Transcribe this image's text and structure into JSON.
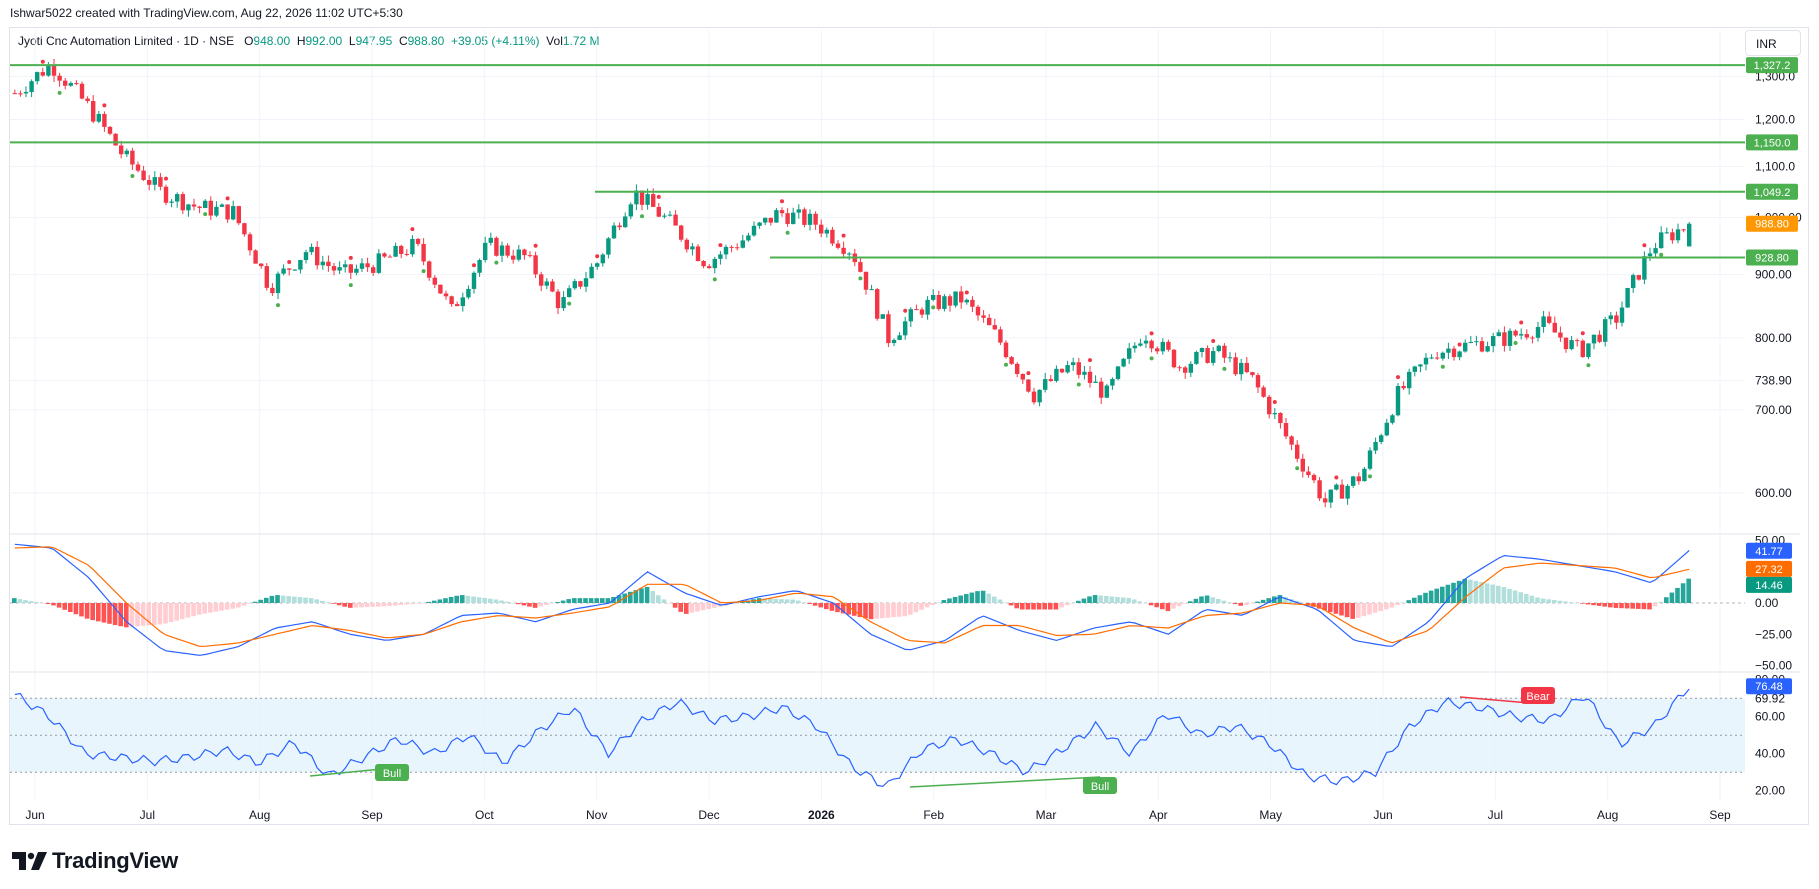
{
  "header": {
    "attribution": "Ishwar5022 created with TradingView.com, Aug 22, 2026 11:02 UTC+5:30"
  },
  "legend": {
    "symbol": "Jyoti Cnc Automation Limited · 1D · NSE",
    "o_label": "O",
    "o_value": "948.00",
    "h_label": "H",
    "h_value": "992.00",
    "l_label": "L",
    "l_value": "947.95",
    "c_label": "C",
    "c_value": "988.80",
    "change": "+39.05 (+4.11%)",
    "vol_label": "Vol",
    "vol_value": "1.72 M"
  },
  "currency": "INR",
  "brand": {
    "name": "TradingView"
  },
  "colors": {
    "up": "#089981",
    "down": "#f23645",
    "level": "#4caf50",
    "macd": "#2962ff",
    "signal": "#ff6d00",
    "rsi": "#2962ff"
  },
  "chart_data": [
    {
      "type": "candlestick",
      "title": "",
      "x_tick_labels": [
        "Jun",
        "Jul",
        "Aug",
        "Sep",
        "Oct",
        "Nov",
        "Dec",
        "2026",
        "Feb",
        "Mar",
        "Apr",
        "May",
        "Jun",
        "Jul",
        "Aug",
        "Sep"
      ],
      "y_tick_labels": [
        "1,300.0",
        "1,200.0",
        "1,100.0",
        "1,000.00",
        "900.00",
        "800.00",
        "738.90",
        "700.00",
        "600.00"
      ],
      "ylim": [
        560,
        1340
      ],
      "y_scale": "log",
      "horizontal_levels": [
        {
          "value": 1327.2,
          "label": "1,327.2"
        },
        {
          "value": 1150.0,
          "label": "1,150.0"
        },
        {
          "value": 1049.2,
          "label": "1,049.2"
        },
        {
          "value": 928.8,
          "label": "928.80"
        }
      ],
      "last_price": {
        "value": 988.8,
        "label": "988.80",
        "color": "#ff9800"
      },
      "last": {
        "open": 948.0,
        "high": 992.0,
        "low": 947.95,
        "close": 988.8
      },
      "close_path": [
        [
          "Jun",
          1260
        ],
        [
          "Jun",
          1330
        ],
        [
          "Jun",
          1230
        ],
        [
          "Jun",
          1120
        ],
        [
          "Jul",
          1050
        ],
        [
          "Jul",
          1020
        ],
        [
          "Aug",
          1010
        ],
        [
          "Aug",
          880
        ],
        [
          "Aug",
          940
        ],
        [
          "Sep",
          900
        ],
        [
          "Sep",
          920
        ],
        [
          "Sep",
          950
        ],
        [
          "Oct",
          840
        ],
        [
          "Oct",
          950
        ],
        [
          "Oct",
          930
        ],
        [
          "Nov",
          850
        ],
        [
          "Nov",
          920
        ],
        [
          "Nov",
          1050
        ],
        [
          "Dec",
          990
        ],
        [
          "Dec",
          920
        ],
        [
          "Dec",
          960
        ],
        [
          "2026",
          1010
        ],
        [
          "2026",
          990
        ],
        [
          "2026",
          940
        ],
        [
          "Feb",
          800
        ],
        [
          "Feb",
          850
        ],
        [
          "Feb",
          860
        ],
        [
          "Mar",
          800
        ],
        [
          "Mar",
          720
        ],
        [
          "Mar",
          760
        ],
        [
          "Apr",
          720
        ],
        [
          "Apr",
          810
        ],
        [
          "Apr",
          760
        ],
        [
          "May",
          780
        ],
        [
          "May",
          740
        ],
        [
          "May",
          660
        ],
        [
          "Jun",
          590
        ],
        [
          "Jun",
          620
        ],
        [
          "Jun",
          720
        ],
        [
          "Jul",
          780
        ],
        [
          "Jul",
          790
        ],
        [
          "Jul",
          800
        ],
        [
          "Aug",
          820
        ],
        [
          "Aug",
          780
        ],
        [
          "Aug",
          830
        ],
        [
          "Aug",
          950
        ],
        [
          "Aug",
          988.8
        ]
      ]
    },
    {
      "type": "line",
      "title": "",
      "y_tick_labels": [
        "50.00",
        "25.00",
        "0.00",
        "−25.00",
        "−50.00"
      ],
      "ylim": [
        -52,
        52
      ],
      "series": [
        {
          "value": 41.77,
          "label": "41.77",
          "color": "#2962ff"
        },
        {
          "value": 27.32,
          "label": "27.32",
          "color": "#ff6d00"
        },
        {
          "value": 14.46,
          "label": "14.46",
          "color": "#089981"
        }
      ],
      "macd_path": [
        47,
        44,
        20,
        -15,
        -38,
        -42,
        -35,
        -20,
        -15,
        -25,
        -30,
        -25,
        -10,
        -8,
        -15,
        -5,
        0,
        25,
        8,
        -2,
        5,
        10,
        0,
        -25,
        -38,
        -30,
        -10,
        -22,
        -30,
        -20,
        -15,
        -25,
        -5,
        -10,
        5,
        -5,
        -30,
        -35,
        -15,
        20,
        38,
        35,
        30,
        25,
        16,
        42
      ],
      "signal_path": [
        44,
        45,
        30,
        0,
        -25,
        -35,
        -32,
        -25,
        -18,
        -22,
        -28,
        -25,
        -15,
        -10,
        -12,
        -8,
        -3,
        15,
        15,
        0,
        2,
        8,
        5,
        -15,
        -30,
        -32,
        -18,
        -18,
        -26,
        -25,
        -18,
        -20,
        -10,
        -8,
        0,
        -2,
        -20,
        -32,
        -22,
        5,
        28,
        32,
        30,
        28,
        20,
        27
      ]
    },
    {
      "type": "line",
      "title": "",
      "y_tick_labels": [
        "80.00",
        "69.92",
        "60.00",
        "40.00",
        "20.00"
      ],
      "ylim": [
        15,
        82
      ],
      "band": [
        30,
        70
      ],
      "series": [
        {
          "value": 76.48,
          "label": "76.48",
          "color": "#2962ff"
        }
      ],
      "annotations": [
        {
          "label": "Bull",
          "color": "#4caf50"
        },
        {
          "label": "Bull",
          "color": "#4caf50"
        },
        {
          "label": "Bear",
          "color": "#f23645"
        }
      ],
      "rsi_path": [
        72,
        60,
        40,
        38,
        36,
        38,
        42,
        35,
        46,
        28,
        38,
        48,
        40,
        50,
        35,
        52,
        65,
        40,
        58,
        68,
        58,
        60,
        65,
        55,
        33,
        22,
        42,
        48,
        40,
        30,
        42,
        55,
        40,
        62,
        50,
        55,
        45,
        28,
        25,
        30,
        55,
        68,
        65,
        60,
        58,
        72,
        45,
        55,
        76.48
      ]
    }
  ]
}
